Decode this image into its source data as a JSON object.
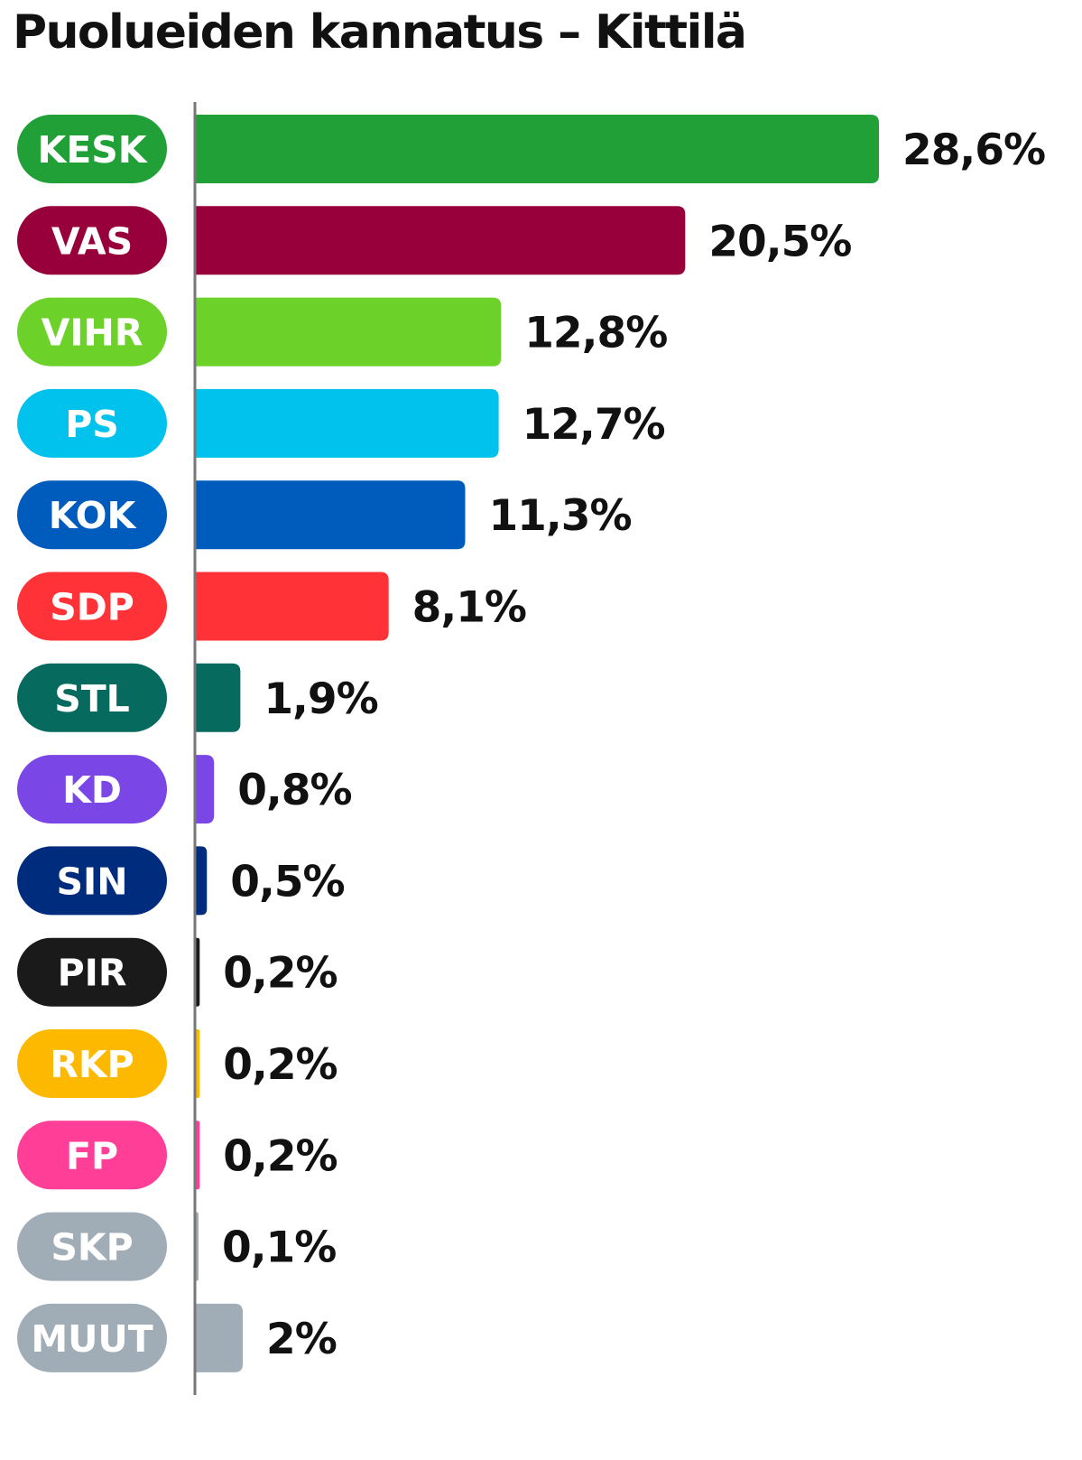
{
  "chart_data": {
    "type": "bar",
    "orientation": "horizontal",
    "title": "Puolueiden kannatus – Kittilä",
    "categories": [
      "KESK",
      "VAS",
      "VIHR",
      "PS",
      "KOK",
      "SDP",
      "STL",
      "KD",
      "SIN",
      "PIR",
      "RKP",
      "FP",
      "SKP",
      "MUUT"
    ],
    "values": [
      28.6,
      20.5,
      12.8,
      12.7,
      11.3,
      8.1,
      1.9,
      0.8,
      0.5,
      0.2,
      0.2,
      0.2,
      0.1,
      2
    ],
    "value_labels": [
      "28,6%",
      "20,5%",
      "12,8%",
      "12,7%",
      "11,3%",
      "8,1%",
      "1,9%",
      "0,8%",
      "0,5%",
      "0,2%",
      "0,2%",
      "0,2%",
      "0,1%",
      "2%"
    ],
    "colors": [
      "#21a038",
      "#98003b",
      "#6cd22a",
      "#00c2ec",
      "#005cbc",
      "#ff3337",
      "#066a5e",
      "#7b46e6",
      "#002c7d",
      "#1a1a1a",
      "#fdb900",
      "#ff3f97",
      "#a0adb6",
      "#a0adb6"
    ],
    "unit": "%",
    "xlim": [
      0,
      28.6
    ],
    "grid": false,
    "legend": "none"
  }
}
